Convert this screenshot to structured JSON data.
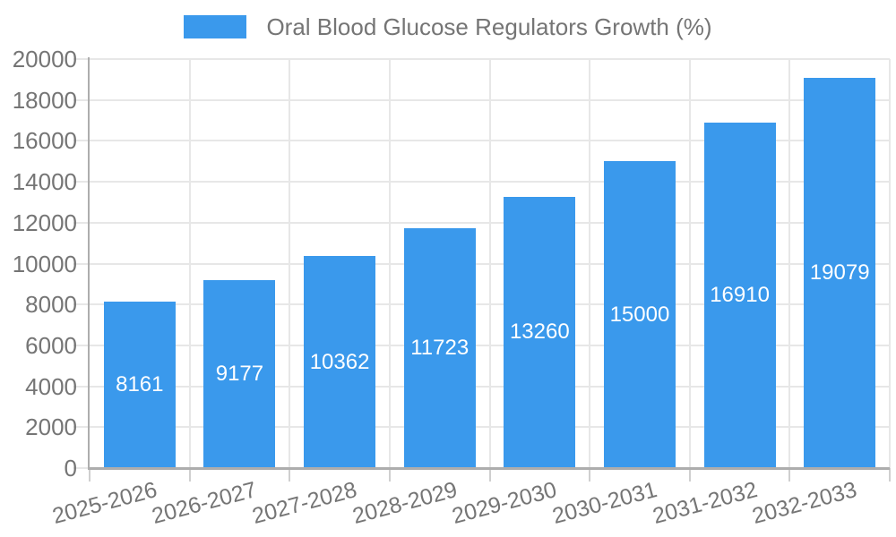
{
  "legend": {
    "label": "Oral Blood Glucose Regulators Growth (%)"
  },
  "chart_data": {
    "type": "bar",
    "title": "Oral Blood Glucose Regulators Growth (%)",
    "series_name": "Oral Blood Glucose Regulators Growth (%)",
    "categories": [
      "2025-2026",
      "2026-2027",
      "2027-2028",
      "2028-2029",
      "2029-2030",
      "2030-2031",
      "2031-2032",
      "2032-2033"
    ],
    "values": [
      8161,
      9177,
      10362,
      11723,
      13260,
      15000,
      16910,
      19079
    ],
    "xlabel": "",
    "ylabel": "",
    "ylim": [
      0,
      20000
    ],
    "ytick_step": 2000,
    "ytick_labels": [
      "0",
      "2000",
      "4000",
      "6000",
      "8000",
      "10000",
      "12000",
      "14000",
      "16000",
      "18000",
      "20000"
    ],
    "grid": true,
    "legend_position": "top",
    "bar_label_position": "center",
    "x_label_rotation_deg": -15,
    "colors": {
      "bar": "#3a99ec",
      "bar_label": "#ffffff",
      "grid": "#e7e7e7",
      "tick": "#cfcfcf",
      "axis_line": "#adadad",
      "axis_text": "#757575",
      "background": "#ffffff"
    }
  }
}
